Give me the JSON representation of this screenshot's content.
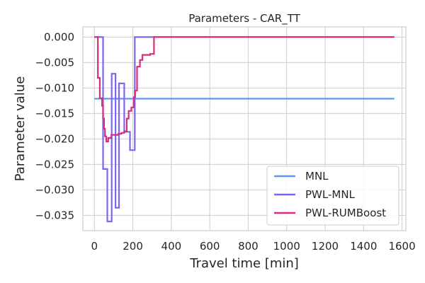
{
  "chart_data": {
    "type": "line",
    "title": "Parameters - CAR_TT",
    "xlabel": "Travel time [min]",
    "ylabel": "Parameter value",
    "xlim": [
      -60,
      1620
    ],
    "ylim": [
      -0.038,
      0.002
    ],
    "xticks": [
      0,
      200,
      400,
      600,
      800,
      1000,
      1200,
      1400,
      1600
    ],
    "xtick_labels": [
      "0",
      "200",
      "400",
      "600",
      "800",
      "1000",
      "1200",
      "1400",
      "1600"
    ],
    "yticks": [
      0.0,
      -0.005,
      -0.01,
      -0.015,
      -0.02,
      -0.025,
      -0.03,
      -0.035
    ],
    "ytick_labels": [
      "0.000",
      "−0.005",
      "−0.010",
      "−0.015",
      "−0.020",
      "−0.025",
      "−0.030",
      "−0.035"
    ],
    "grid": true,
    "legend_position": "bottom-right",
    "step": "post",
    "series": [
      {
        "name": "MNL",
        "color": "#6495ED",
        "points": [
          [
            0,
            -0.0121
          ],
          [
            1560,
            -0.0121
          ]
        ]
      },
      {
        "name": "PWL-MNL",
        "color": "#7B68EE",
        "points": [
          [
            0,
            0.0
          ],
          [
            45,
            -0.0259
          ],
          [
            67,
            -0.0362
          ],
          [
            90,
            -0.0072
          ],
          [
            110,
            -0.0335
          ],
          [
            128,
            -0.0091
          ],
          [
            155,
            -0.0186
          ],
          [
            185,
            -0.0222
          ],
          [
            210,
            0.0
          ],
          [
            1560,
            0.0
          ]
        ]
      },
      {
        "name": "PWL-RUMBoost",
        "color": "#D62E7F",
        "points": [
          [
            0,
            0.0
          ],
          [
            18,
            -0.008
          ],
          [
            28,
            -0.012
          ],
          [
            40,
            -0.0135
          ],
          [
            45,
            -0.016
          ],
          [
            50,
            -0.018
          ],
          [
            55,
            -0.0195
          ],
          [
            62,
            -0.0205
          ],
          [
            72,
            -0.0198
          ],
          [
            88,
            -0.0192
          ],
          [
            125,
            -0.019
          ],
          [
            140,
            -0.0188
          ],
          [
            155,
            -0.0185
          ],
          [
            168,
            -0.016
          ],
          [
            178,
            -0.0145
          ],
          [
            192,
            -0.0138
          ],
          [
            205,
            -0.0118
          ],
          [
            212,
            -0.0105
          ],
          [
            222,
            -0.0058
          ],
          [
            237,
            -0.0045
          ],
          [
            250,
            -0.0035
          ],
          [
            290,
            -0.0033
          ],
          [
            310,
            0.0
          ],
          [
            1560,
            0.0
          ]
        ]
      }
    ]
  }
}
